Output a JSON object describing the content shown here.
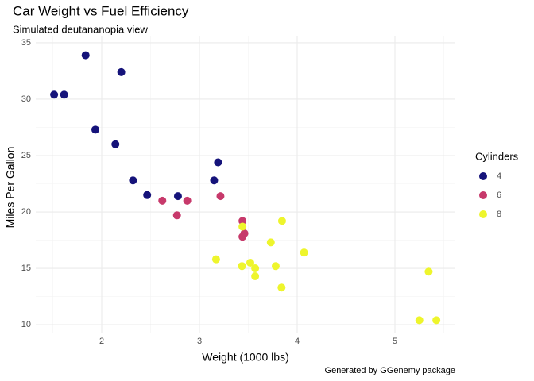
{
  "chart_data": {
    "type": "scatter",
    "title": "Car Weight vs Fuel Efficiency",
    "subtitle": "Simulated deutananopia view",
    "x_label": "Weight (1000 lbs)",
    "y_label": "Miles Per Gallon",
    "caption": "Generated by GGenemy package",
    "legend_title": "Cylinders",
    "legend_position": "right",
    "grid": true,
    "xlim": [
      1.325,
      5.618
    ],
    "ylim": [
      9.23,
      35.63
    ],
    "xticks": [
      2,
      3,
      4,
      5
    ],
    "yticks": [
      10,
      15,
      20,
      25,
      30,
      35
    ],
    "series": [
      {
        "name": "4",
        "color": "#15137a",
        "x": [
          2.32,
          3.19,
          3.15,
          2.2,
          1.615,
          1.835,
          2.465,
          1.935,
          2.14,
          1.513,
          2.78
        ],
        "values": [
          22.8,
          24.4,
          22.8,
          32.4,
          30.4,
          33.9,
          21.5,
          27.3,
          26.0,
          30.4,
          21.4
        ]
      },
      {
        "name": "6",
        "color": "#c7396b",
        "x": [
          2.62,
          2.875,
          3.215,
          3.46,
          3.44,
          3.44,
          2.77
        ],
        "values": [
          21.0,
          21.0,
          21.4,
          18.1,
          19.2,
          17.8,
          19.7
        ]
      },
      {
        "name": "8",
        "color": "#eef52c",
        "x": [
          3.44,
          3.57,
          4.07,
          3.73,
          3.78,
          5.25,
          5.424,
          5.345,
          3.52,
          3.435,
          3.84,
          3.845,
          3.17,
          3.57
        ],
        "values": [
          18.7,
          14.3,
          16.4,
          17.3,
          15.2,
          10.4,
          10.4,
          14.7,
          15.5,
          15.2,
          13.3,
          19.2,
          15.8,
          15.0
        ]
      }
    ]
  }
}
